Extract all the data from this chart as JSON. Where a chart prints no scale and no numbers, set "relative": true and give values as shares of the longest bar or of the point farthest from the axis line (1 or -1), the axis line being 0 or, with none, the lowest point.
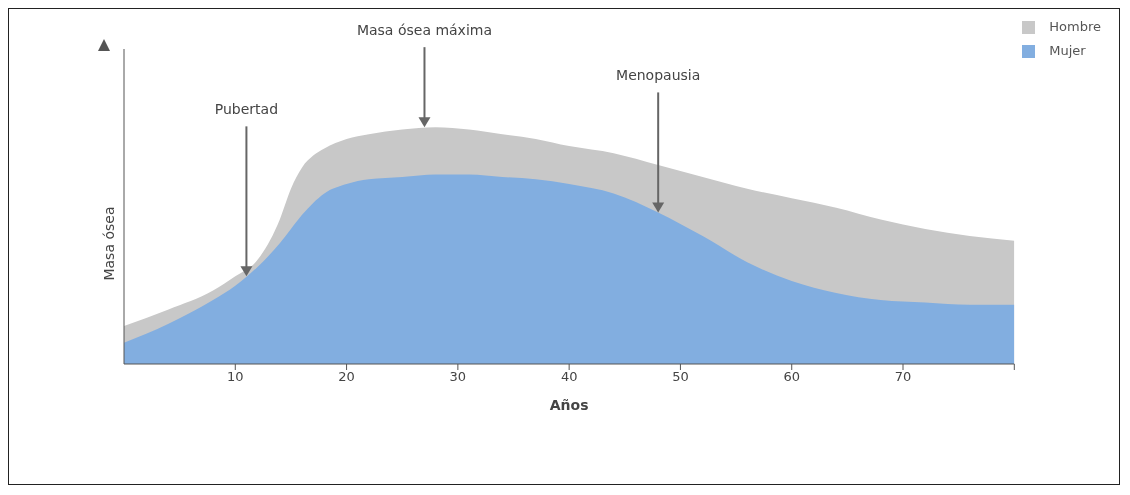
{
  "chart_data": {
    "type": "area",
    "relative": true,
    "xlabel": "Años",
    "ylabel": "Masa ósea",
    "x": [
      0,
      4,
      8,
      10,
      12,
      14,
      15,
      16,
      17,
      18,
      20,
      22,
      25,
      28,
      31,
      34,
      37,
      40,
      44,
      48,
      52,
      56,
      60,
      64,
      68,
      72,
      76,
      80
    ],
    "xlim": [
      0,
      80
    ],
    "xticks": [
      10,
      20,
      30,
      40,
      50,
      60,
      70,
      {
        "value": 80,
        "label": null
      }
    ],
    "series": [
      {
        "name": "Hombre",
        "color": "#c8c8c8",
        "values": [
          0.16,
          0.23,
          0.31,
          0.37,
          0.44,
          0.61,
          0.74,
          0.83,
          0.88,
          0.91,
          0.95,
          0.97,
          0.99,
          1,
          0.99,
          0.97,
          0.95,
          0.92,
          0.89,
          0.84,
          0.79,
          0.74,
          0.7,
          0.66,
          0.61,
          0.57,
          0.54,
          0.52
        ]
      },
      {
        "name": "Mujer",
        "color": "#82aee0",
        "values": [
          0.09,
          0.17,
          0.27,
          0.33,
          0.41,
          0.51,
          0.57,
          0.63,
          0.68,
          0.72,
          0.76,
          0.78,
          0.79,
          0.8,
          0.8,
          0.79,
          0.78,
          0.76,
          0.72,
          0.64,
          0.54,
          0.43,
          0.35,
          0.3,
          0.27,
          0.26,
          0.25,
          0.25
        ]
      }
    ],
    "annotations": [
      {
        "text": "Pubertad",
        "x": 11,
        "y": 0.37
      },
      {
        "text": "Masa ósea máxima",
        "x": 27,
        "y": 1
      },
      {
        "text": "Menopausia",
        "x": 48,
        "y": 0.64
      }
    ],
    "legend": "top right",
    "grid": false
  }
}
